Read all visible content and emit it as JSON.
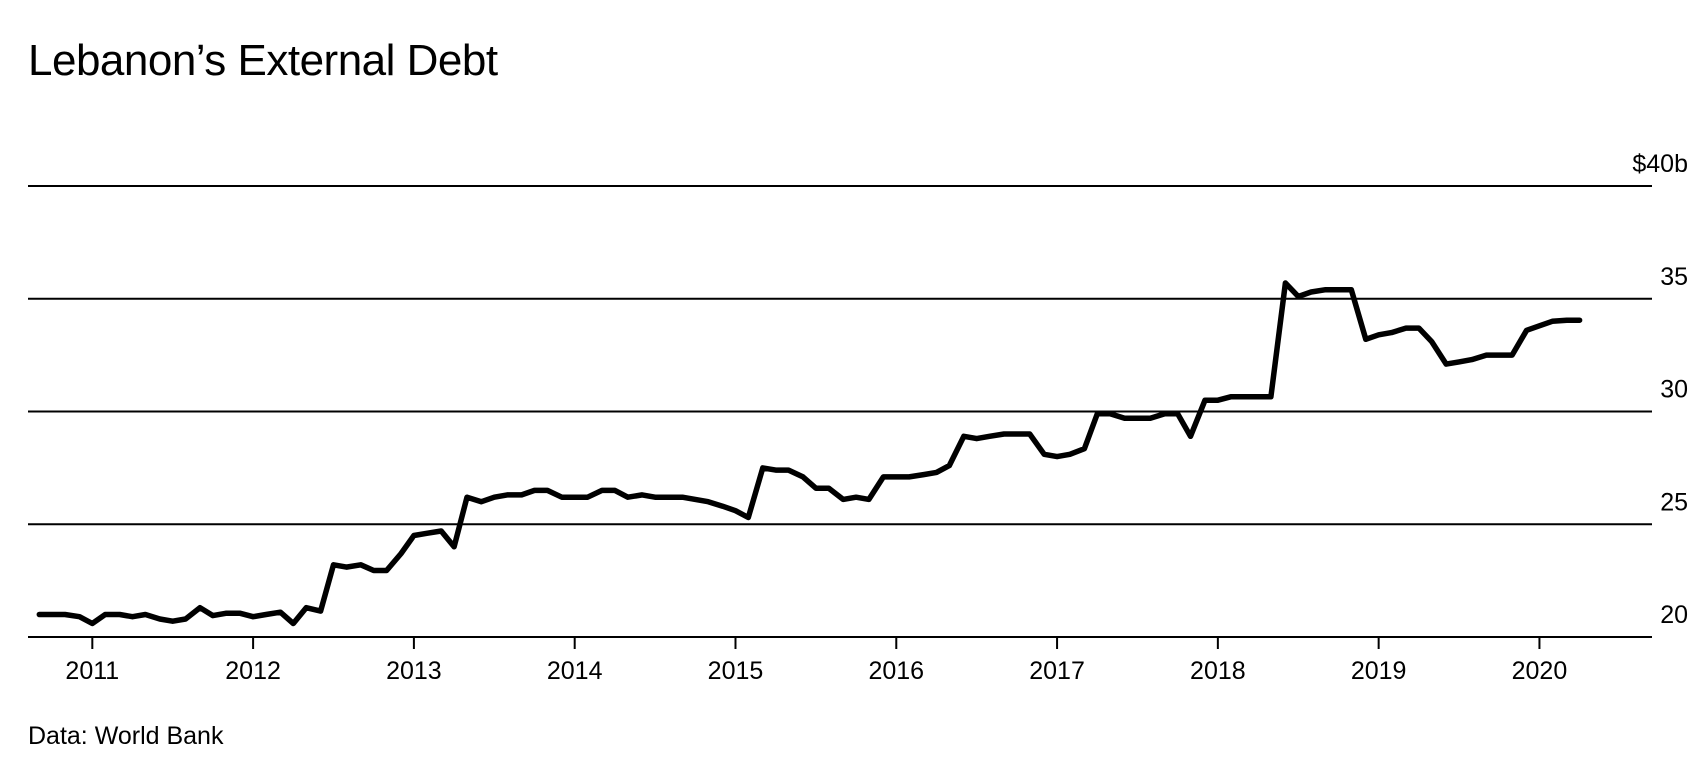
{
  "title": "Lebanon’s External Debt",
  "source": "Data: World Bank",
  "chart_data": {
    "type": "line",
    "title": "Lebanon’s External Debt",
    "xlabel": "",
    "ylabel": "",
    "ylim": [
      20,
      40
    ],
    "xlim": [
      2010.6,
      2020.7
    ],
    "y_ticks": [
      20,
      25,
      30,
      35,
      40
    ],
    "y_tick_labels": [
      "20",
      "25",
      "30",
      "35",
      "$40b"
    ],
    "x_ticks": [
      2011,
      2012,
      2013,
      2014,
      2015,
      2016,
      2017,
      2018,
      2019,
      2020
    ],
    "x_tick_labels": [
      "2011",
      "2012",
      "2013",
      "2014",
      "2015",
      "2016",
      "2017",
      "2018",
      "2019",
      "2020"
    ],
    "grid": true,
    "series": [
      {
        "points": [
          [
            2010.67,
            21.0
          ],
          [
            2010.75,
            21.0
          ],
          [
            2010.83,
            21.0
          ],
          [
            2010.92,
            20.9
          ],
          [
            2011.0,
            20.6
          ],
          [
            2011.08,
            21.0
          ],
          [
            2011.17,
            21.0
          ],
          [
            2011.25,
            20.9
          ],
          [
            2011.33,
            21.0
          ],
          [
            2011.42,
            20.8
          ],
          [
            2011.5,
            20.7
          ],
          [
            2011.58,
            20.8
          ],
          [
            2011.67,
            21.3
          ],
          [
            2011.75,
            20.95
          ],
          [
            2011.83,
            21.05
          ],
          [
            2011.92,
            21.05
          ],
          [
            2012.0,
            20.9
          ],
          [
            2012.08,
            21.0
          ],
          [
            2012.17,
            21.1
          ],
          [
            2012.25,
            20.6
          ],
          [
            2012.33,
            21.3
          ],
          [
            2012.42,
            21.15
          ],
          [
            2012.5,
            23.2
          ],
          [
            2012.58,
            23.1
          ],
          [
            2012.67,
            23.2
          ],
          [
            2012.75,
            22.95
          ],
          [
            2012.83,
            22.95
          ],
          [
            2012.92,
            23.7
          ],
          [
            2013.0,
            24.5
          ],
          [
            2013.08,
            24.6
          ],
          [
            2013.17,
            24.7
          ],
          [
            2013.25,
            24.0
          ],
          [
            2013.33,
            26.2
          ],
          [
            2013.42,
            26.0
          ],
          [
            2013.5,
            26.2
          ],
          [
            2013.58,
            26.3
          ],
          [
            2013.67,
            26.3
          ],
          [
            2013.75,
            26.5
          ],
          [
            2013.83,
            26.5
          ],
          [
            2013.92,
            26.2
          ],
          [
            2014.0,
            26.2
          ],
          [
            2014.08,
            26.2
          ],
          [
            2014.17,
            26.5
          ],
          [
            2014.25,
            26.5
          ],
          [
            2014.33,
            26.2
          ],
          [
            2014.42,
            26.3
          ],
          [
            2014.5,
            26.2
          ],
          [
            2014.58,
            26.2
          ],
          [
            2014.67,
            26.2
          ],
          [
            2014.75,
            26.1
          ],
          [
            2014.83,
            26.0
          ],
          [
            2014.92,
            25.8
          ],
          [
            2015.0,
            25.6
          ],
          [
            2015.08,
            25.3
          ],
          [
            2015.17,
            27.5
          ],
          [
            2015.25,
            27.4
          ],
          [
            2015.33,
            27.4
          ],
          [
            2015.42,
            27.1
          ],
          [
            2015.5,
            26.6
          ],
          [
            2015.58,
            26.6
          ],
          [
            2015.67,
            26.1
          ],
          [
            2015.75,
            26.2
          ],
          [
            2015.83,
            26.1
          ],
          [
            2015.92,
            27.1
          ],
          [
            2016.0,
            27.1
          ],
          [
            2016.08,
            27.1
          ],
          [
            2016.17,
            27.2
          ],
          [
            2016.25,
            27.3
          ],
          [
            2016.33,
            27.6
          ],
          [
            2016.42,
            28.9
          ],
          [
            2016.5,
            28.8
          ],
          [
            2016.58,
            28.9
          ],
          [
            2016.67,
            29.0
          ],
          [
            2016.75,
            29.0
          ],
          [
            2016.83,
            29.0
          ],
          [
            2016.92,
            28.1
          ],
          [
            2017.0,
            28.0
          ],
          [
            2017.08,
            28.1
          ],
          [
            2017.17,
            28.35
          ],
          [
            2017.25,
            29.9
          ],
          [
            2017.33,
            29.9
          ],
          [
            2017.42,
            29.7
          ],
          [
            2017.5,
            29.7
          ],
          [
            2017.58,
            29.7
          ],
          [
            2017.67,
            29.9
          ],
          [
            2017.75,
            29.9
          ],
          [
            2017.83,
            28.9
          ],
          [
            2017.92,
            30.5
          ],
          [
            2018.0,
            30.5
          ],
          [
            2018.08,
            30.65
          ],
          [
            2018.17,
            30.65
          ],
          [
            2018.25,
            30.65
          ],
          [
            2018.33,
            30.65
          ],
          [
            2018.42,
            35.7
          ],
          [
            2018.5,
            35.1
          ],
          [
            2018.58,
            35.3
          ],
          [
            2018.67,
            35.4
          ],
          [
            2018.75,
            35.4
          ],
          [
            2018.83,
            35.4
          ],
          [
            2018.92,
            33.2
          ],
          [
            2019.0,
            33.4
          ],
          [
            2019.08,
            33.5
          ],
          [
            2019.17,
            33.7
          ],
          [
            2019.25,
            33.7
          ],
          [
            2019.33,
            33.1
          ],
          [
            2019.42,
            32.1
          ],
          [
            2019.5,
            32.2
          ],
          [
            2019.58,
            32.3
          ],
          [
            2019.67,
            32.5
          ],
          [
            2019.75,
            32.5
          ],
          [
            2019.83,
            32.5
          ],
          [
            2019.92,
            33.6
          ],
          [
            2020.0,
            33.8
          ],
          [
            2020.08,
            34.0
          ],
          [
            2020.17,
            34.05
          ],
          [
            2020.25,
            34.05
          ]
        ]
      }
    ]
  }
}
